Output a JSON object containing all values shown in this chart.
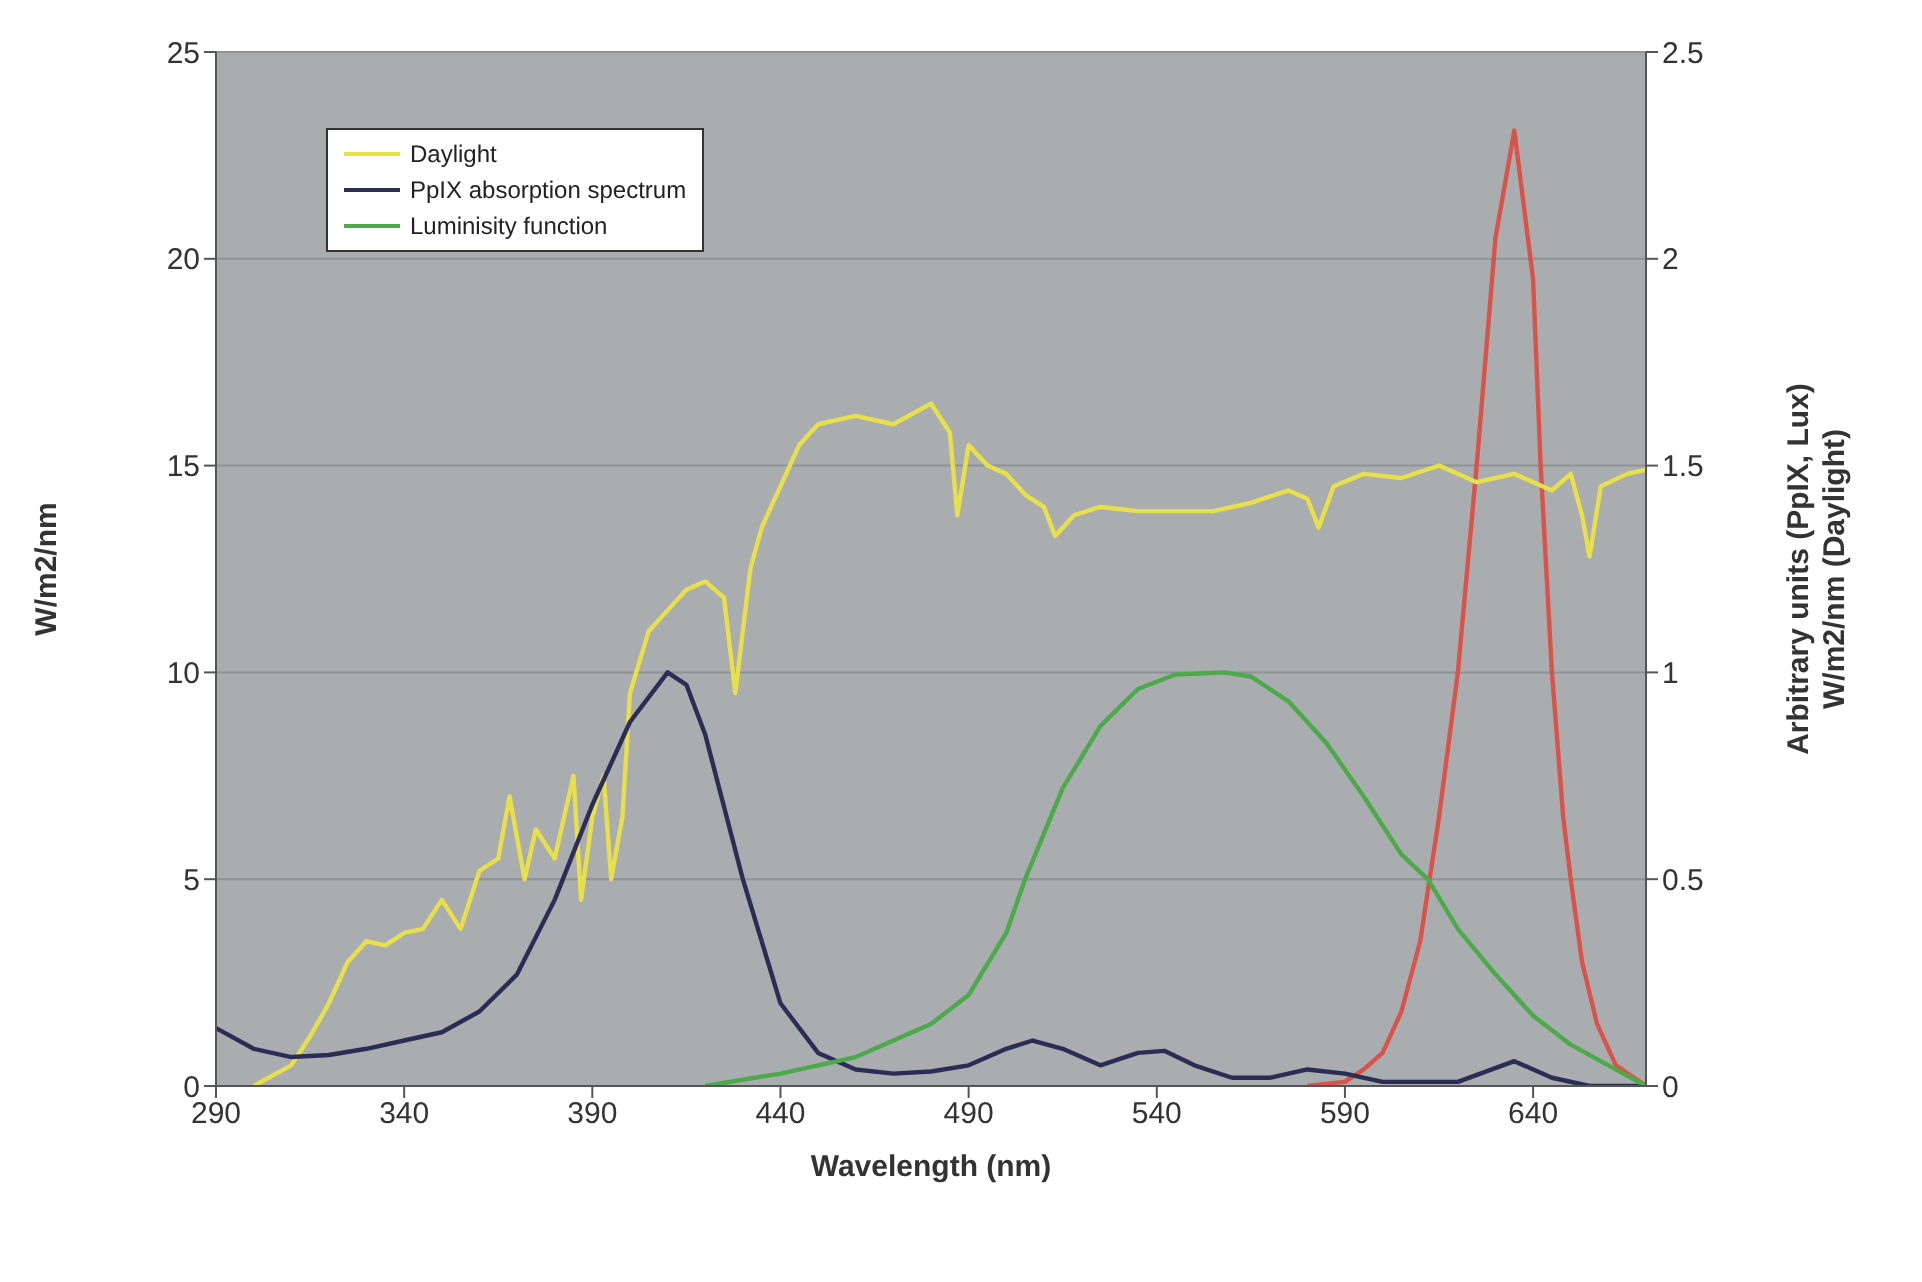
{
  "chart_data": {
    "type": "line",
    "xlabel": "Wavelength (nm)",
    "ylabel": "W/m2/nm",
    "y2label": "Arbitrary units (PpIX, Lux)\nW/m2/nm (Daylight)",
    "xlim": [
      290,
      670
    ],
    "xticks": [
      290,
      340,
      390,
      440,
      490,
      540,
      590,
      640
    ],
    "ylim": [
      0,
      25
    ],
    "yticks": [
      0,
      5,
      10,
      15,
      20,
      25
    ],
    "y2lim": [
      0,
      2.5
    ],
    "y2ticks": [
      0,
      0.5,
      1,
      1.5,
      2,
      2.5
    ],
    "grid": "y",
    "legend": "top left",
    "marker": "none",
    "line_style": "solid",
    "series": [
      {
        "color": "#d9534a",
        "x": [
          580,
          590,
          595,
          600,
          605,
          610,
          615,
          620,
          625,
          630,
          635,
          640,
          642,
          645,
          648,
          650,
          653,
          657,
          662,
          670
        ],
        "values": [
          0,
          0.1,
          0.4,
          0.8,
          1.8,
          3.5,
          6.5,
          10,
          15,
          20.5,
          23.1,
          19.5,
          15,
          10,
          6.5,
          5,
          3,
          1.5,
          0.5,
          0
        ]
      },
      {
        "name": "Daylight",
        "color": "#e8e04a",
        "axis": "y2",
        "x": [
          300,
          310,
          315,
          320,
          325,
          330,
          335,
          340,
          345,
          350,
          355,
          360,
          365,
          368,
          372,
          375,
          380,
          385,
          387,
          390,
          393,
          395,
          398,
          400,
          405,
          410,
          415,
          420,
          425,
          428,
          432,
          435,
          440,
          445,
          450,
          460,
          470,
          480,
          485,
          487,
          490,
          495,
          500,
          505,
          510,
          513,
          518,
          525,
          535,
          545,
          555,
          565,
          575,
          580,
          583,
          587,
          595,
          605,
          615,
          625,
          635,
          645,
          650,
          653,
          655,
          658,
          665,
          670
        ],
        "values": [
          0,
          0.05,
          0.12,
          0.2,
          0.3,
          0.35,
          0.34,
          0.37,
          0.38,
          0.45,
          0.38,
          0.52,
          0.55,
          0.7,
          0.5,
          0.62,
          0.55,
          0.75,
          0.45,
          0.65,
          0.75,
          0.5,
          0.65,
          0.95,
          1.1,
          1.15,
          1.2,
          1.22,
          1.18,
          0.95,
          1.25,
          1.35,
          1.45,
          1.55,
          1.6,
          1.62,
          1.6,
          1.65,
          1.58,
          1.38,
          1.55,
          1.5,
          1.48,
          1.43,
          1.4,
          1.33,
          1.38,
          1.4,
          1.39,
          1.39,
          1.39,
          1.41,
          1.44,
          1.42,
          1.35,
          1.45,
          1.48,
          1.47,
          1.5,
          1.46,
          1.48,
          1.44,
          1.48,
          1.38,
          1.28,
          1.45,
          1.48,
          1.49
        ]
      },
      {
        "name": "PpIX absorption spectrum",
        "color": "#2b2d55",
        "axis": "y2",
        "x": [
          290,
          300,
          310,
          320,
          330,
          340,
          350,
          360,
          370,
          380,
          390,
          400,
          410,
          415,
          420,
          430,
          440,
          450,
          460,
          470,
          480,
          490,
          500,
          507,
          515,
          525,
          535,
          542,
          550,
          560,
          570,
          580,
          590,
          600,
          620,
          635,
          645,
          655,
          670
        ],
        "values": [
          0.14,
          0.09,
          0.07,
          0.075,
          0.09,
          0.11,
          0.13,
          0.18,
          0.27,
          0.45,
          0.68,
          0.88,
          1,
          0.97,
          0.85,
          0.5,
          0.2,
          0.08,
          0.04,
          0.03,
          0.035,
          0.05,
          0.09,
          0.11,
          0.09,
          0.05,
          0.08,
          0.085,
          0.05,
          0.02,
          0.02,
          0.04,
          0.03,
          0.01,
          0.01,
          0.06,
          0.02,
          0,
          0
        ]
      },
      {
        "name": "Luminisity function",
        "color": "#4caa4a",
        "axis": "y2",
        "x": [
          420,
          440,
          460,
          480,
          490,
          500,
          505,
          515,
          525,
          535,
          545,
          558,
          565,
          575,
          585,
          595,
          605,
          612,
          620,
          630,
          640,
          650,
          660,
          670
        ],
        "values": [
          0,
          0.03,
          0.07,
          0.15,
          0.22,
          0.37,
          0.5,
          0.72,
          0.87,
          0.96,
          0.995,
          1,
          0.99,
          0.93,
          0.83,
          0.7,
          0.56,
          0.5,
          0.38,
          0.27,
          0.17,
          0.1,
          0.05,
          0
        ]
      }
    ]
  }
}
